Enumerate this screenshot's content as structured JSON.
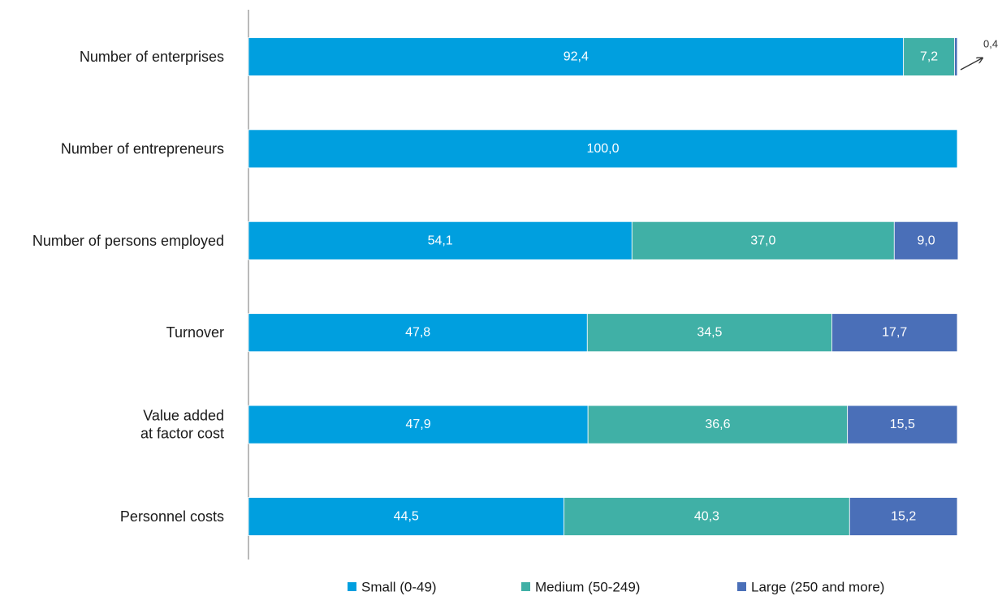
{
  "chart_data": {
    "type": "bar",
    "orientation": "horizontal",
    "stacked": true,
    "xlim": [
      0,
      100
    ],
    "grid": false,
    "legend_position": "bottom",
    "categories": [
      [
        "Number of enterprises"
      ],
      [
        "Number of entrepreneurs"
      ],
      [
        "Number of persons employed"
      ],
      [
        "Turnover"
      ],
      [
        "Value added",
        "at factor cost"
      ],
      [
        "Personnel costs"
      ]
    ],
    "series": [
      {
        "name": "Small (0-49)",
        "color": "#009fdf",
        "values": [
          92.4,
          100.0,
          54.1,
          47.8,
          47.9,
          44.5
        ],
        "labels": [
          "92,4",
          "100,0",
          "54,1",
          "47,8",
          "47,9",
          "44,5"
        ]
      },
      {
        "name": "Medium (50-249)",
        "color": "#40b0a6",
        "values": [
          7.2,
          0,
          37.0,
          34.5,
          36.6,
          40.3
        ],
        "labels": [
          "7,2",
          "",
          "37,0",
          "34,5",
          "36,6",
          "40,3"
        ]
      },
      {
        "name": "Large (250 and more)",
        "color": "#4a6fb8",
        "values": [
          0.4,
          0,
          9.0,
          17.7,
          15.5,
          15.2
        ],
        "labels": [
          "0,4",
          "",
          "9,0",
          "17,7",
          "15,5",
          "15,2"
        ]
      }
    ]
  }
}
